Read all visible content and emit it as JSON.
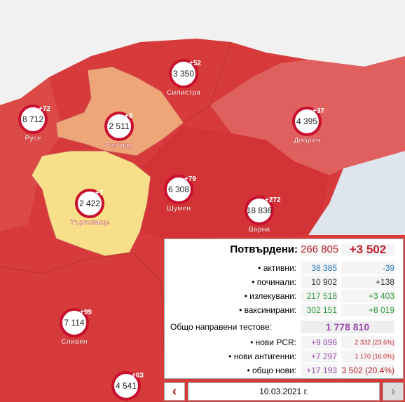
{
  "map": {
    "regions": [
      {
        "name": "Силистра",
        "count": "3 350",
        "delta": "+52"
      },
      {
        "name": "Русе",
        "count": "8 712",
        "delta": "+72"
      },
      {
        "name": "Разград",
        "count": "2 511",
        "delta": "+8"
      },
      {
        "name": "Добрич",
        "count": "4 395",
        "delta": "+37"
      },
      {
        "name": "Търговище",
        "count": "2 422",
        "delta": "+7"
      },
      {
        "name": "Шумен",
        "count": "6 308",
        "delta": "+79"
      },
      {
        "name": "Варна",
        "count": "18 836",
        "delta": "+272"
      },
      {
        "name": "Сливен",
        "count": "7 114",
        "delta": "+99"
      },
      {
        "count": "4 541",
        "delta": "+63"
      }
    ]
  },
  "stats": {
    "confirmed": {
      "label": "Потвърдени:",
      "total": "266 805",
      "delta": "+3 502"
    },
    "rows": [
      {
        "label": "• активни:",
        "value": "38 385",
        "delta": "-39"
      },
      {
        "label": "• починали:",
        "value": "10 902",
        "delta": "+138"
      },
      {
        "label": "• излекувани:",
        "value": "217 518",
        "delta": "+3 403"
      },
      {
        "label": "• ваксинирани:",
        "value": "302 151",
        "delta": "+8 019"
      }
    ],
    "tests": {
      "label": "Общо направени тестове:",
      "total": "1 778 810"
    },
    "test_rows": [
      {
        "label": "• нови PCR:",
        "new": "+9 896",
        "positive": "2 332 (23.6%)"
      },
      {
        "label": "• нови антигенни:",
        "new": "+7 297",
        "positive": "1 170 (16.0%)"
      },
      {
        "label": "• общо нови:",
        "new": "+17 193",
        "positive": "3 502 (20.4%)"
      }
    ]
  },
  "date": "10.03.2021 г."
}
